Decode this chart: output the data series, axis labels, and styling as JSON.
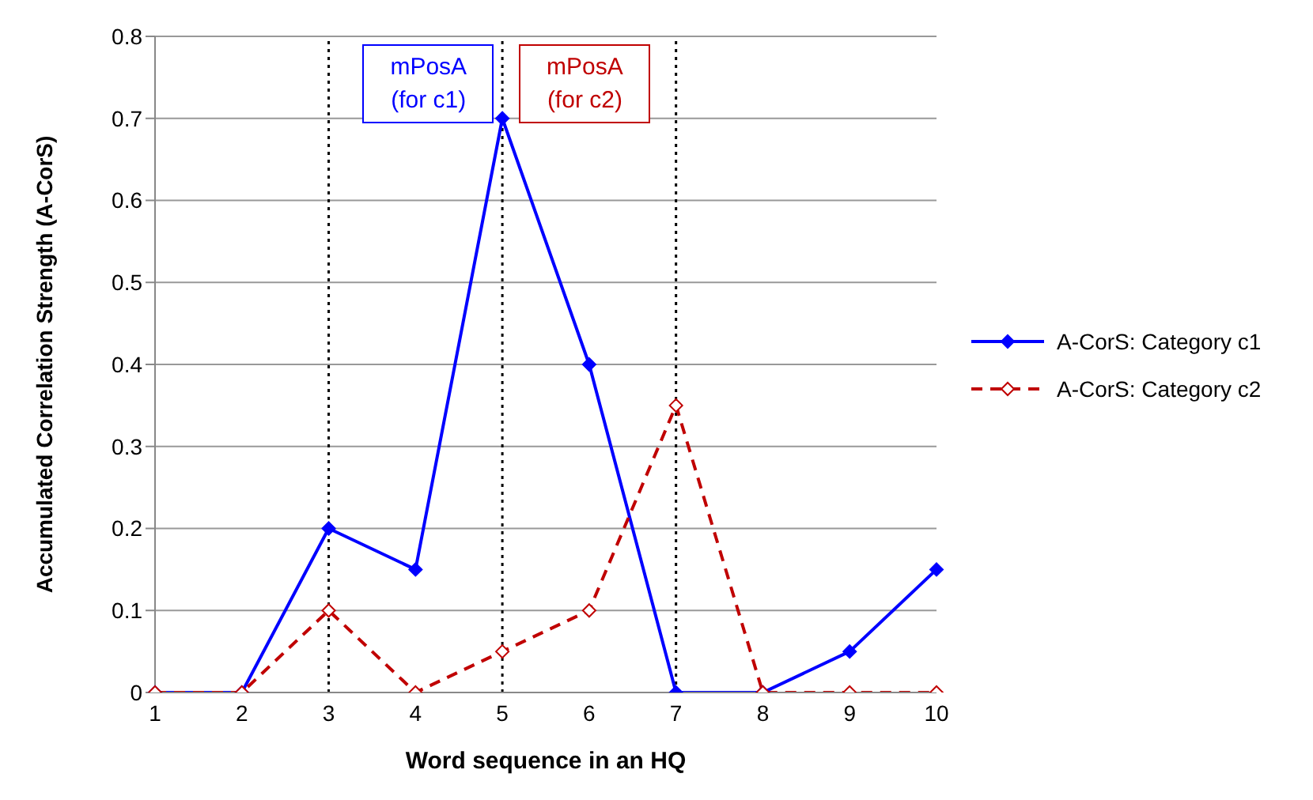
{
  "chart_data": {
    "type": "line",
    "xlabel": "Word sequence in an HQ",
    "ylabel": "Accumulated Correlation Strength (A-CorS)",
    "categories": [
      "1",
      "2",
      "3",
      "4",
      "5",
      "6",
      "7",
      "8",
      "9",
      "10"
    ],
    "series": [
      {
        "name": "A-CorS: Category c1",
        "color": "#0000ff",
        "line_style": "solid",
        "values": [
          0,
          0,
          0.2,
          0.15,
          0.7,
          0.4,
          0,
          0,
          0.05,
          0.15
        ]
      },
      {
        "name": "A-CorS: Category c2",
        "color": "#c00000",
        "line_style": "dashed",
        "values": [
          0,
          0,
          0.1,
          0,
          0.05,
          0.1,
          0.35,
          0,
          0,
          0
        ]
      }
    ],
    "ylim": [
      0,
      0.8
    ],
    "yticks": [
      0,
      0.1,
      0.2,
      0.3,
      0.4,
      0.5,
      0.6,
      0.7,
      0.8
    ],
    "grid": "y",
    "legend": "right",
    "marker": "diamond",
    "ref_lines": [
      {
        "axis": "x",
        "value": "3",
        "color": "#000000",
        "line_style": "dotted"
      },
      {
        "axis": "x",
        "value": "5",
        "color": "#000000",
        "line_style": "dotted"
      },
      {
        "axis": "x",
        "value": "7",
        "color": "#000000",
        "line_style": "dotted"
      }
    ],
    "annotations": [
      "mPosA (for c1)",
      "mPosA (for c2)"
    ]
  }
}
